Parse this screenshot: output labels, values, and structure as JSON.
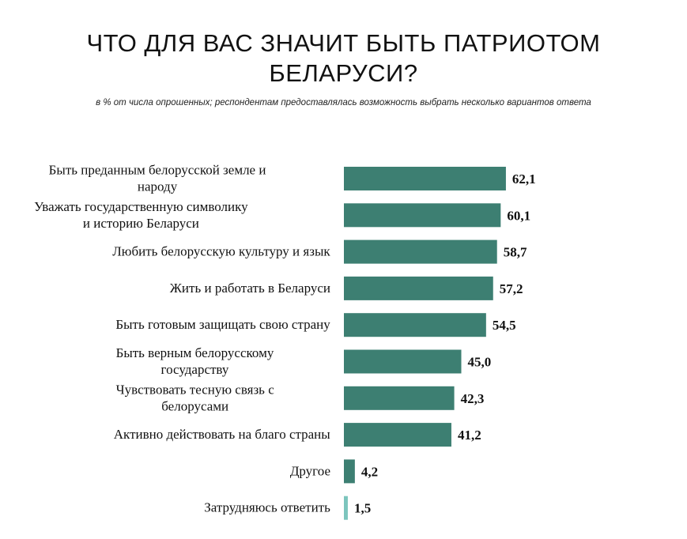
{
  "chart_data": {
    "type": "bar",
    "orientation": "horizontal",
    "title_lines": [
      "ЧТО ДЛЯ ВАС ЗНАЧИТ БЫТЬ ПАТРИОТОМ",
      "БЕЛАРУСИ?"
    ],
    "subtitle": "в % от числа опрошенных; респондентам предоставлялась возможность выбрать несколько вариантов ответа",
    "categories": [
      [
        "Быть преданным белорусской земле и",
        "народу"
      ],
      [
        "Уважать государственную символику",
        "и историю Беларуси"
      ],
      [
        "Любить белорусскую культуру и язык"
      ],
      [
        "Жить и работать в Беларуси"
      ],
      [
        "Быть готовым защищать свою страну"
      ],
      [
        "Быть верным белорусскому",
        "государству"
      ],
      [
        "Чувствовать тесную связь с",
        "белорусами"
      ],
      [
        "Активно действовать на благо страны"
      ],
      [
        "Другое"
      ],
      [
        "Затрудняюсь ответить"
      ]
    ],
    "values": [
      62.1,
      60.1,
      58.7,
      57.2,
      54.5,
      45.0,
      42.3,
      41.2,
      4.2,
      1.5
    ],
    "value_labels": [
      "62,1",
      "60,1",
      "58,7",
      "57,2",
      "54,5",
      "45,0",
      "42,3",
      "41,2",
      "4,2",
      "1,5"
    ],
    "xlim": [
      0,
      100
    ],
    "grid": false,
    "colors": {
      "bar": "#3d7f72",
      "bar_last": "#7cc5bd"
    }
  }
}
